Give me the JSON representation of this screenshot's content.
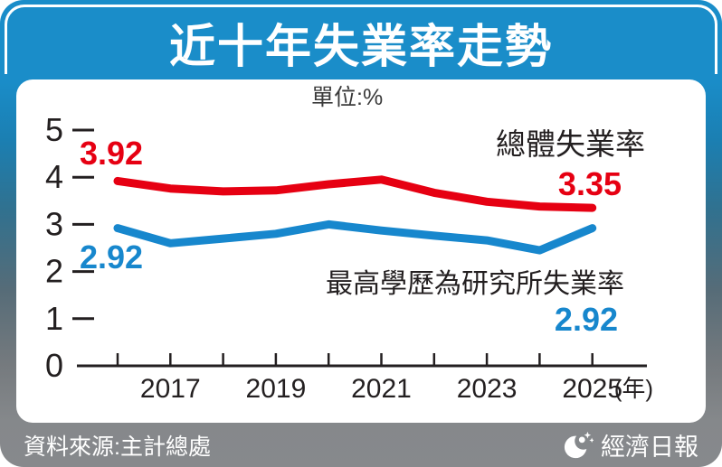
{
  "header": {
    "title": "近十年失業率走勢"
  },
  "chart_data": {
    "type": "line",
    "title": "近十年失業率走勢",
    "unit_label": "單位:%",
    "x": [
      2016,
      2017,
      2018,
      2019,
      2020,
      2021,
      2022,
      2023,
      2024,
      2025
    ],
    "x_labeled_years": [
      2017,
      2019,
      2021,
      2023,
      2025
    ],
    "x_axis_suffix": "(年)",
    "xlabel": "年",
    "ylabel": "%",
    "ylim": [
      0,
      5
    ],
    "yticks": [
      0,
      1,
      2,
      3,
      4,
      5
    ],
    "grid": false,
    "legend_position": "inline-annotations",
    "series": [
      {
        "name": "總體失業率",
        "color": "#e60012",
        "values": [
          3.92,
          3.76,
          3.7,
          3.72,
          3.85,
          3.95,
          3.67,
          3.48,
          3.38,
          3.35
        ],
        "first_value_label": "3.92",
        "last_value_label": "3.35"
      },
      {
        "name": "最高學歷為研究所失業率",
        "color": "#1787cd",
        "values": [
          2.92,
          2.6,
          2.7,
          2.8,
          3.0,
          2.87,
          2.76,
          2.66,
          2.45,
          2.92
        ],
        "first_value_label": "2.92",
        "last_value_label": "2.92"
      }
    ]
  },
  "footer": {
    "source": "資料來源:主計總處",
    "brand": "經濟日報"
  },
  "colors": {
    "header_blue": "#1a8dc9",
    "overall_red": "#e60012",
    "graduate_blue": "#1787cd",
    "footer_gray": "#85888b",
    "axis_black": "#231f20",
    "panel_white": "#ffffff"
  }
}
